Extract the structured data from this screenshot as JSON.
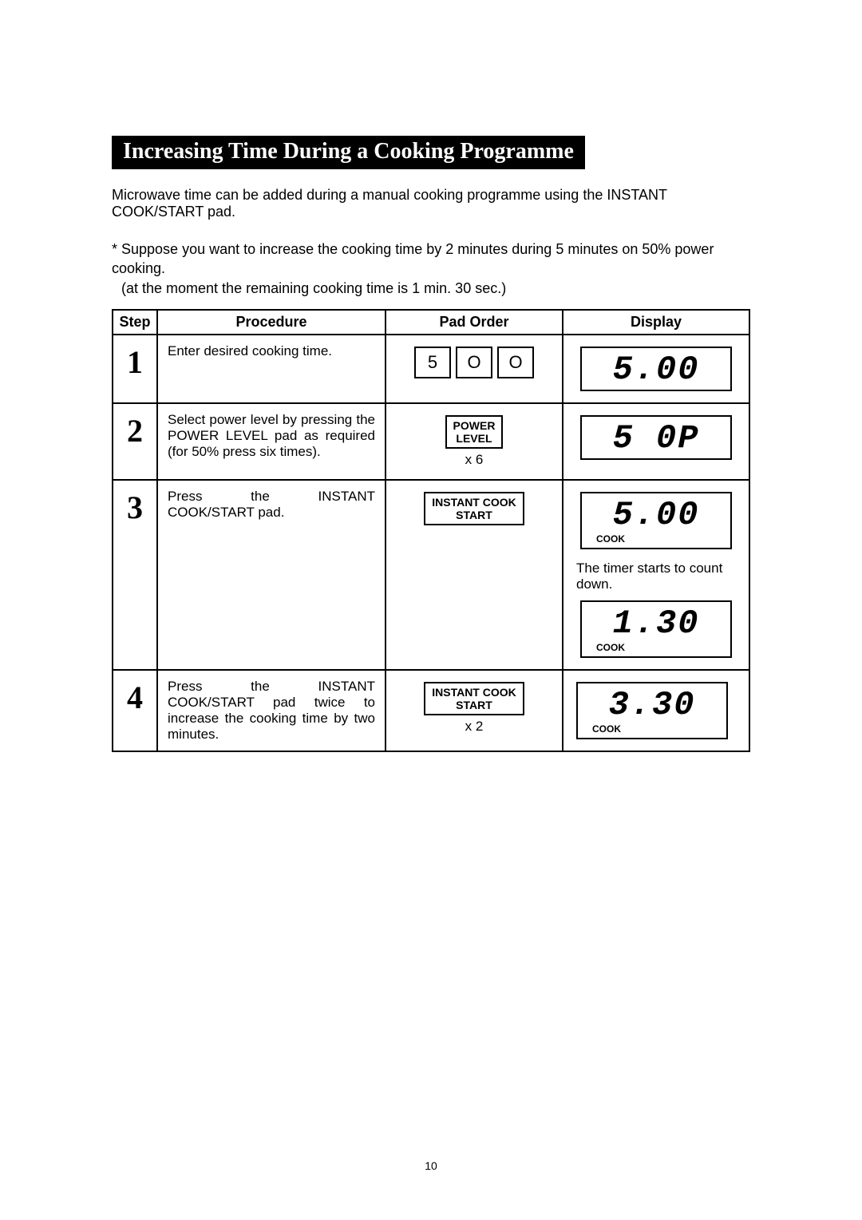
{
  "title": "Increasing Time During a Cooking Programme",
  "intro": "Microwave time can be added during a manual cooking programme using the INSTANT COOK/START pad.",
  "note_line1": "* Suppose you want to increase the cooking time by 2 minutes during 5 minutes on 50% power cooking.",
  "note_line2": "(at the moment the remaining cooking time is 1 min. 30 sec.)",
  "headers": {
    "step": "Step",
    "procedure": "Procedure",
    "pad_order": "Pad Order",
    "display": "Display"
  },
  "rows": {
    "r1": {
      "step": "1",
      "procedure": "Enter desired cooking time.",
      "keys": {
        "k1": "5",
        "k2": "O",
        "k3": "O"
      },
      "display": "5.00"
    },
    "r2": {
      "step": "2",
      "procedure": "Select power level by pressing the POWER LEVEL pad as required (for 50% press six times).",
      "pad_btn_l1": "POWER",
      "pad_btn_l2": "LEVEL",
      "pad_sub": "x 6",
      "display": "5 0P"
    },
    "r3": {
      "step": "3",
      "procedure": "Press the INSTANT COOK/START pad.",
      "pad_btn_l1": "INSTANT COOK",
      "pad_btn_l2": "START",
      "display1": "5.00",
      "cook_label": "COOK",
      "note": "The timer starts to count down.",
      "display2": "1.30"
    },
    "r4": {
      "step": "4",
      "procedure": "Press the INSTANT COOK/START pad twice to increase the cooking time by two minutes.",
      "pad_btn_l1": "INSTANT COOK",
      "pad_btn_l2": "START",
      "pad_sub": "x 2",
      "display": "3.30",
      "cook_label": "COOK"
    }
  },
  "page_number": "10"
}
